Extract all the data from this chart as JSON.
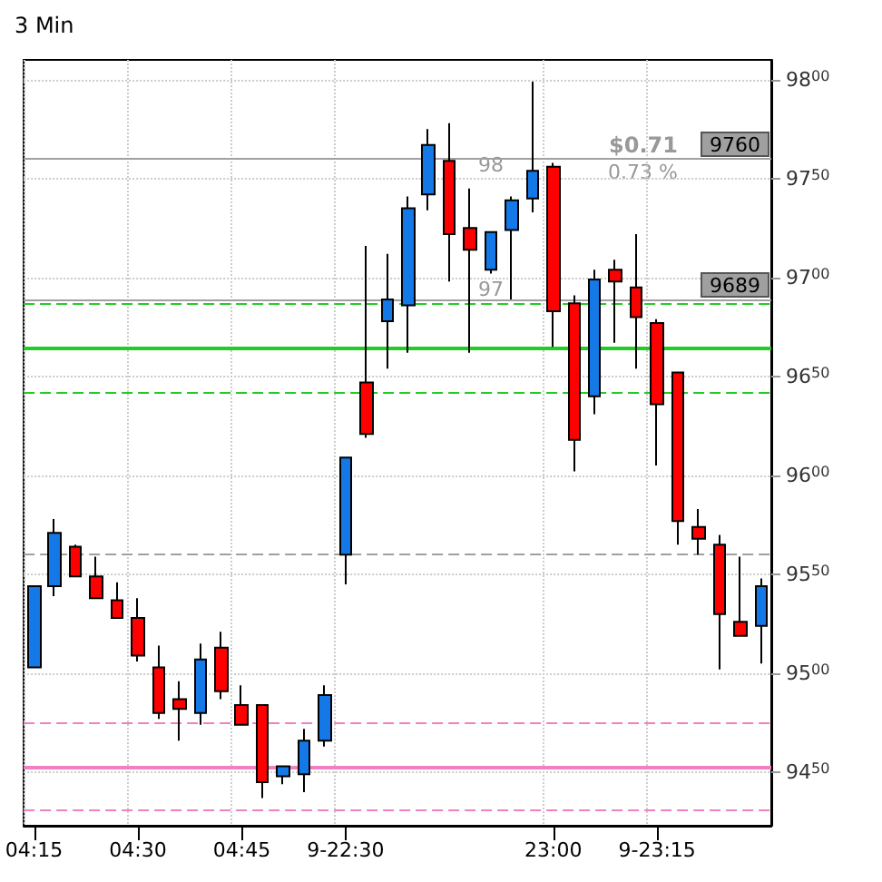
{
  "chart_data": {
    "type": "candlestick",
    "title": "3 Min",
    "categories": [
      "04:15",
      null,
      null,
      null,
      null,
      "04:30",
      null,
      null,
      null,
      null,
      "04:45",
      null,
      null,
      null,
      null,
      "9-22:30",
      null,
      null,
      null,
      null,
      null,
      null,
      null,
      null,
      null,
      "23:00",
      null,
      null,
      null,
      null,
      "9-23:15",
      null,
      null,
      null,
      null,
      null
    ],
    "ohlc": [
      [
        9503,
        9544,
        9503,
        9544
      ],
      [
        9544,
        9578,
        9539,
        9571
      ],
      [
        9564,
        9565,
        9549,
        9549
      ],
      [
        9549,
        9559,
        9538,
        9538
      ],
      [
        9537,
        9546,
        9528,
        9528
      ],
      [
        9528,
        9538,
        9506,
        9509
      ],
      [
        9503,
        9514,
        9477,
        9480
      ],
      [
        9487,
        9496,
        9466,
        9482
      ],
      [
        9480,
        9515,
        9474,
        9507
      ],
      [
        9513,
        9521,
        9487,
        9491
      ],
      [
        9484,
        9494,
        9474,
        9474
      ],
      [
        9484,
        9484,
        9437,
        9445
      ],
      [
        9448,
        9453,
        9444,
        9453
      ],
      [
        9449,
        9472,
        9440,
        9466
      ],
      [
        9466,
        9494,
        9463,
        9489
      ],
      [
        9560,
        9609,
        9545,
        9609
      ],
      [
        9647,
        9716,
        9619,
        9621
      ],
      [
        9678,
        9712,
        9654,
        9689
      ],
      [
        9686,
        9741,
        9662,
        9735
      ],
      [
        9742,
        9775,
        9734,
        9767
      ],
      [
        9759,
        9778,
        9698,
        9722
      ],
      [
        9725,
        9745,
        9662,
        9714
      ],
      [
        9704,
        9723,
        9702,
        9723
      ],
      [
        9724,
        9741,
        9689,
        9739
      ],
      [
        9740,
        9799,
        9733,
        9754
      ],
      [
        9756,
        9758,
        9665,
        9683
      ],
      [
        9687,
        9691,
        9602,
        9618
      ],
      [
        9640,
        9704,
        9631,
        9699
      ],
      [
        9704,
        9709,
        9667,
        9698
      ],
      [
        9695,
        9722,
        9654,
        9680
      ],
      [
        9677,
        9679,
        9605,
        9636
      ],
      [
        9652,
        9652,
        9565,
        9577
      ],
      [
        9574,
        9583,
        9560,
        9568
      ],
      [
        9565,
        9570,
        9502,
        9530
      ],
      [
        9526,
        9559,
        9519,
        9519
      ],
      [
        9524,
        9548,
        9505,
        9544
      ]
    ],
    "colors": [
      "#1478e6",
      "#1478e6",
      "#ff0000",
      "#ff0000",
      "#ff0000",
      "#ff0000",
      "#ff0000",
      "#ff0000",
      "#1478e6",
      "#ff0000",
      "#ff0000",
      "#ff0000",
      "#1478e6",
      "#1478e6",
      "#1478e6",
      "#1478e6",
      "#ff0000",
      "#1478e6",
      "#1478e6",
      "#1478e6",
      "#ff0000",
      "#ff0000",
      "#1478e6",
      "#1478e6",
      "#1478e6",
      "#ff0000",
      "#ff0000",
      "#1478e6",
      "#ff0000",
      "#ff0000",
      "#ff0000",
      "#ff0000",
      "#ff0000",
      "#ff0000",
      "#ff0000",
      "#1478e6"
    ],
    "ylim": [
      9423,
      9810
    ],
    "yticks": [
      9450,
      9500,
      9550,
      9600,
      9650,
      9700,
      9750,
      9800
    ],
    "ref_lines": [
      {
        "axis": "y",
        "value": 9760,
        "label": "9760",
        "color": "#a0a0a0",
        "line_style": "solid"
      },
      {
        "axis": "y",
        "value": 9689,
        "label": "9689",
        "color": "#a0a0a0",
        "line_style": "solid"
      },
      {
        "axis": "y",
        "value": 9687,
        "color": "#22cc22",
        "line_style": "dashed"
      },
      {
        "axis": "y",
        "value": 9664,
        "color": "#22cc22",
        "line_style": "solid"
      },
      {
        "axis": "y",
        "value": 9642,
        "color": "#22cc22",
        "line_style": "dashed"
      },
      {
        "axis": "y",
        "value": 9560,
        "color": "#a0a0a0",
        "line_style": "dashed"
      },
      {
        "axis": "y",
        "value": 9475,
        "color": "#f080c0",
        "line_style": "dashed"
      },
      {
        "axis": "y",
        "value": 9453,
        "color": "#f080c0",
        "line_style": "solid"
      },
      {
        "axis": "y",
        "value": 9431,
        "color": "#f080c0",
        "line_style": "dashed"
      }
    ],
    "annotations": [
      "$0.71",
      "0.73 %",
      "98",
      "97"
    ],
    "grid": true
  }
}
